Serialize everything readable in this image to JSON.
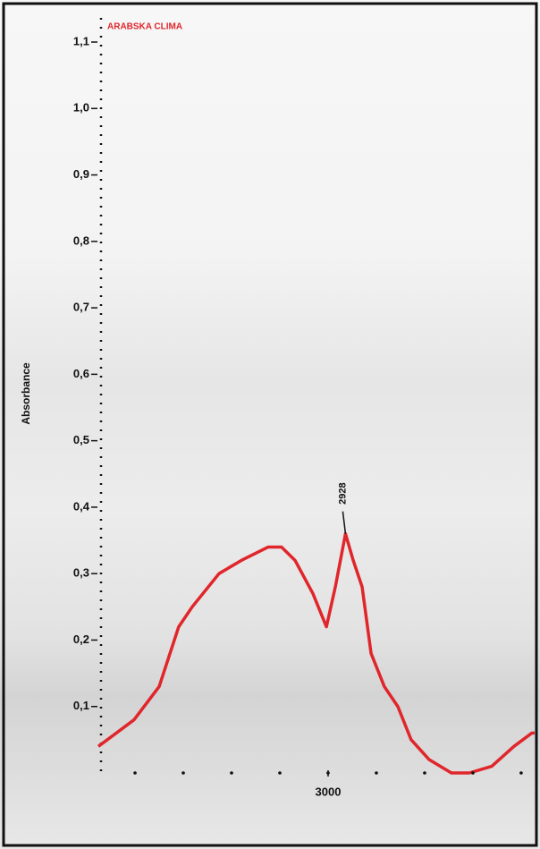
{
  "chart_data": {
    "type": "line",
    "y_label": "Absorbance",
    "series": [
      {
        "name": "ARABSKA CLIMA",
        "color": "#e0262b",
        "x": [
          3952,
          3804,
          3700,
          3619,
          3563,
          3452,
          3359,
          3248,
          3193,
          3137,
          3063,
          3007,
          2970,
          2928,
          2896,
          2859,
          2822,
          2767,
          2711,
          2656,
          2581,
          2489,
          2415,
          2322,
          2230,
          2156,
          2122
        ],
        "values": [
          0.04,
          0.08,
          0.13,
          0.22,
          0.25,
          0.3,
          0.32,
          0.34,
          0.34,
          0.32,
          0.27,
          0.22,
          0.28,
          0.36,
          0.32,
          0.28,
          0.18,
          0.13,
          0.1,
          0.05,
          0.02,
          0.0,
          0.0,
          0.01,
          0.04,
          0.06,
          0.06
        ]
      }
    ],
    "annotations": [
      {
        "label": "2928",
        "x": 2928,
        "y": 0.36
      }
    ],
    "xlim": [
      3952,
      2122
    ],
    "xticks": [
      3000
    ],
    "xminorticks": [
      3800,
      3600,
      3400,
      3200,
      3000,
      2800,
      2600,
      2400,
      2200
    ],
    "ylim": [
      0,
      1.1
    ],
    "yticks": [
      {
        "value": 0.1,
        "label": "0,1"
      },
      {
        "value": 0.2,
        "label": "0,2"
      },
      {
        "value": 0.3,
        "label": "0,3"
      },
      {
        "value": 0.4,
        "label": "0,4"
      },
      {
        "value": 0.5,
        "label": "0,5"
      },
      {
        "value": 0.6,
        "label": "0,6"
      },
      {
        "value": 0.7,
        "label": "0,7"
      },
      {
        "value": 0.8,
        "label": "0,8"
      },
      {
        "value": 0.9,
        "label": "0,9"
      },
      {
        "value": 1.0,
        "label": "1,0"
      },
      {
        "value": 1.1,
        "label": "1,1"
      }
    ]
  }
}
